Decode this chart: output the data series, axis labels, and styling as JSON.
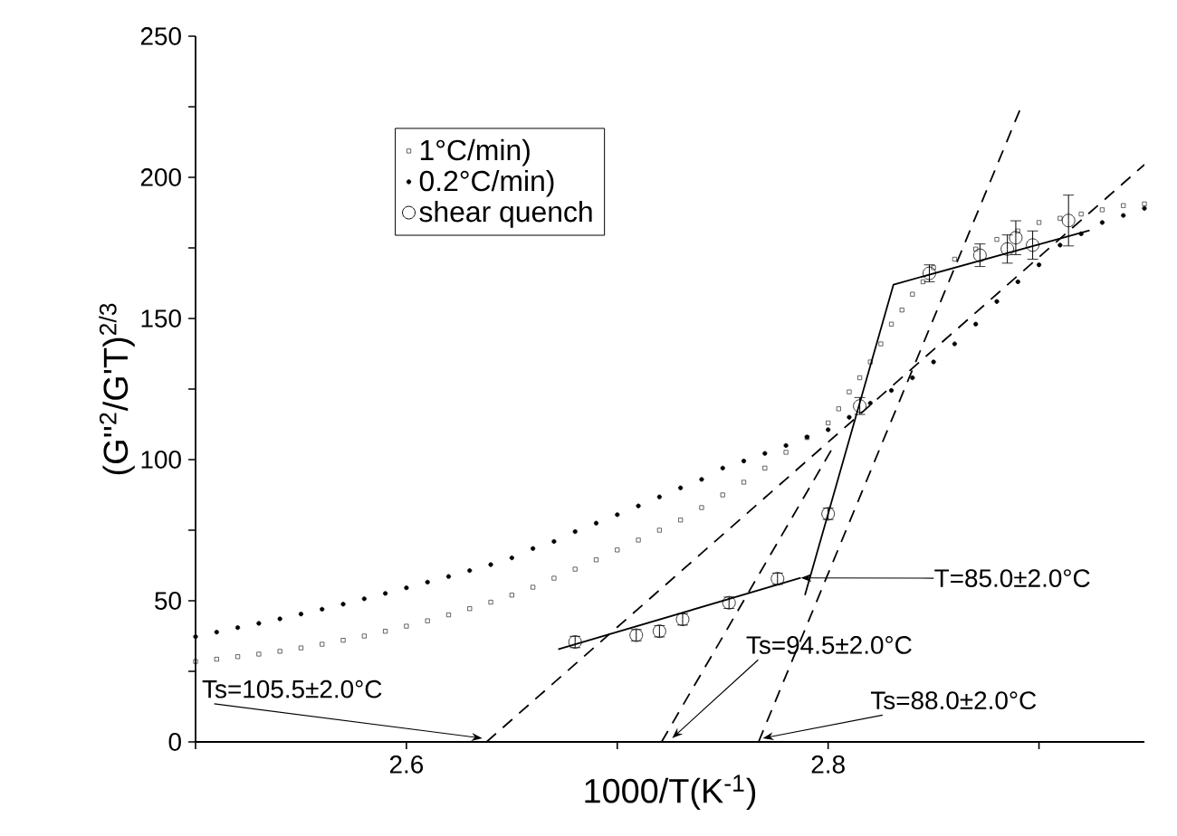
{
  "chart_data": {
    "type": "scatter",
    "xlabel": "1000/T(K$^{-1}$)",
    "ylabel": "(G''$^{2}$/G'T)$^{2/3}$",
    "xlim": [
      2.5,
      2.95
    ],
    "ylim": [
      0,
      250
    ],
    "xticks": [
      {
        "value": 2.5,
        "label": null
      },
      2.6,
      {
        "value": 2.7,
        "label": null
      },
      2.8,
      {
        "value": 2.9,
        "label": null
      }
    ],
    "yticks": [
      0,
      {
        "value": 25,
        "label": null
      },
      50,
      {
        "value": 75,
        "label": null
      },
      100,
      {
        "value": 125,
        "label": null
      },
      150,
      {
        "value": 175,
        "label": null
      },
      200,
      {
        "value": 225,
        "label": null
      },
      250
    ],
    "legend": "top left",
    "grid": false,
    "series": [
      {
        "name": "1°C/min)",
        "marker": "square",
        "color": "#000000",
        "x": [
          2.5,
          2.51,
          2.52,
          2.53,
          2.54,
          2.55,
          2.56,
          2.57,
          2.58,
          2.59,
          2.6,
          2.61,
          2.62,
          2.63,
          2.64,
          2.65,
          2.66,
          2.67,
          2.68,
          2.69,
          2.7,
          2.71,
          2.72,
          2.73,
          2.74,
          2.75,
          2.76,
          2.77,
          2.78,
          2.79,
          2.8,
          2.805,
          2.81,
          2.815,
          2.82,
          2.825,
          2.83,
          2.835,
          2.84,
          2.845,
          2.85,
          2.86,
          2.87,
          2.88,
          2.89,
          2.9,
          2.91,
          2.92,
          2.93,
          2.94,
          2.95
        ],
        "values": [
          28.5,
          29.3,
          30.2,
          31.1,
          32.1,
          33.3,
          34.6,
          36,
          37.5,
          39.2,
          41,
          42.9,
          45,
          47.2,
          49.5,
          52,
          54.8,
          58,
          61.2,
          64.5,
          68,
          71.5,
          75,
          78.6,
          83,
          87.5,
          92,
          97,
          102.6,
          107.8,
          113,
          118,
          124,
          129,
          134.6,
          141,
          148,
          153,
          158.6,
          163,
          168,
          171,
          174.6,
          178,
          181,
          184,
          185.5,
          187,
          188.5,
          190,
          190.6
        ]
      },
      {
        "name": "0.2°C/min)",
        "marker": "circle",
        "color": "#000000",
        "x": [
          2.5,
          2.51,
          2.52,
          2.53,
          2.54,
          2.55,
          2.56,
          2.57,
          2.58,
          2.59,
          2.6,
          2.61,
          2.62,
          2.63,
          2.64,
          2.65,
          2.66,
          2.67,
          2.68,
          2.69,
          2.7,
          2.71,
          2.72,
          2.73,
          2.74,
          2.75,
          2.76,
          2.77,
          2.78,
          2.79,
          2.8,
          2.81,
          2.82,
          2.83,
          2.84,
          2.85,
          2.86,
          2.87,
          2.88,
          2.89,
          2.9,
          2.91,
          2.92,
          2.93,
          2.94,
          2.95
        ],
        "values": [
          37.3,
          38.9,
          40.5,
          42,
          43.6,
          45.3,
          47,
          48.8,
          50.7,
          52.6,
          54.6,
          56.6,
          58.6,
          60.7,
          62.8,
          65.2,
          68.5,
          71,
          74.5,
          77.5,
          80.5,
          83.6,
          86.8,
          90,
          93,
          97,
          99.5,
          102.2,
          105,
          108,
          110.6,
          115,
          120,
          124.5,
          129,
          134.6,
          141,
          148,
          156,
          163,
          169,
          176,
          180,
          184,
          186.5,
          189
        ]
      },
      {
        "name": "shear quench",
        "marker": "circle",
        "color": "#000000",
        "x": [
          2.68,
          2.709,
          2.72,
          2.731,
          2.753,
          2.776,
          2.8,
          2.815,
          2.848,
          2.872,
          2.885,
          2.889,
          2.897,
          2.914
        ],
        "values": [
          35.4,
          37.8,
          39.2,
          43.4,
          49.3,
          57.8,
          80.8,
          119,
          166,
          172.4,
          174.6,
          178.6,
          176,
          184.7
        ],
        "errors": [
          2,
          2,
          2,
          2,
          2,
          2,
          2,
          3,
          3,
          4,
          5,
          6,
          5,
          9
        ]
      },
      {
        "type": "line",
        "line_style": "solid",
        "marker": "none",
        "color": "#000000",
        "x": [
          2.672,
          2.787
        ],
        "values": [
          32.8,
          58.1
        ]
      },
      {
        "type": "line",
        "line_style": "solid",
        "marker": "none",
        "color": "#000000",
        "x": [
          2.789,
          2.831,
          2.924
        ],
        "values": [
          52,
          162,
          181.2
        ]
      },
      {
        "type": "line",
        "line_style": "dashed",
        "marker": "none",
        "color": "#000000",
        "x": [
          2.638,
          2.95
        ],
        "values": [
          0,
          204.5
        ]
      },
      {
        "type": "line",
        "line_style": "dashed",
        "marker": "none",
        "color": "#000000",
        "x": [
          2.721,
          2.802
        ],
        "values": [
          0,
          104
        ]
      },
      {
        "type": "line",
        "line_style": "dashed",
        "marker": "none",
        "color": "#000000",
        "x": [
          2.767,
          2.891
        ],
        "values": [
          0,
          224
        ]
      }
    ],
    "annotations": [
      "T=85.0±2.0°C",
      {
        "text": "Ts=94.5±2.0°C",
        "x": 2.726,
        "y": 1.3
      },
      {
        "text": "Ts=105.5±2.0°C",
        "x": 2.636,
        "y": 1.3
      },
      {
        "text": "Ts=88.0±2.0°C",
        "x": 2.769,
        "y": 1.3
      }
    ]
  }
}
